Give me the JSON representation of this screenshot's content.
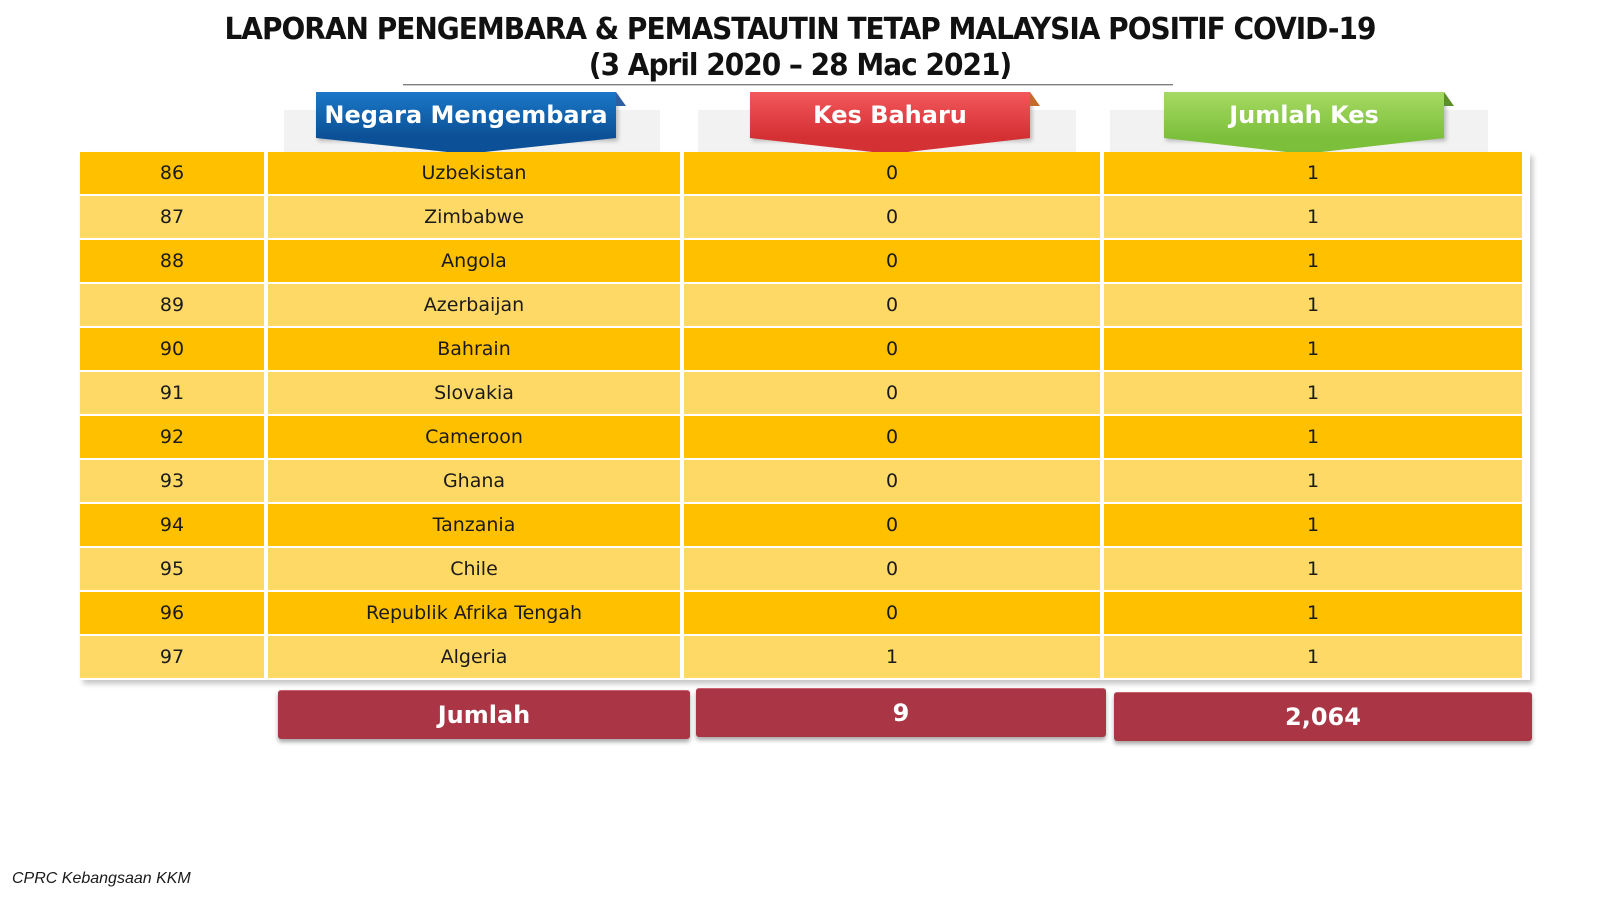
{
  "title": {
    "line1": "LAPORAN PENGEMBARA & PEMASTAUTIN TETAP MALAYSIA POSITIF COVID-19",
    "line2": "(3 April 2020 – 28 Mac 2021)"
  },
  "headers": {
    "country": "Negara Mengembara",
    "new_cases": "Kes Baharu",
    "total_cases": "Jumlah Kes"
  },
  "rows": [
    {
      "no": "86",
      "country": "Uzbekistan",
      "new": "0",
      "total": "1"
    },
    {
      "no": "87",
      "country": "Zimbabwe",
      "new": "0",
      "total": "1"
    },
    {
      "no": "88",
      "country": "Angola",
      "new": "0",
      "total": "1"
    },
    {
      "no": "89",
      "country": "Azerbaijan",
      "new": "0",
      "total": "1"
    },
    {
      "no": "90",
      "country": "Bahrain",
      "new": "0",
      "total": "1"
    },
    {
      "no": "91",
      "country": "Slovakia",
      "new": "0",
      "total": "1"
    },
    {
      "no": "92",
      "country": "Cameroon",
      "new": "0",
      "total": "1"
    },
    {
      "no": "93",
      "country": "Ghana",
      "new": "0",
      "total": "1"
    },
    {
      "no": "94",
      "country": "Tanzania",
      "new": "0",
      "total": "1"
    },
    {
      "no": "95",
      "country": "Chile",
      "new": "0",
      "total": "1"
    },
    {
      "no": "96",
      "country": "Republik Afrika Tengah",
      "new": "0",
      "total": "1"
    },
    {
      "no": "97",
      "country": "Algeria",
      "new": "1",
      "total": "1"
    }
  ],
  "totals": {
    "label": "Jumlah",
    "new": "9",
    "total": "2,064"
  },
  "footer": "CPRC Kebangsaan KKM",
  "colors": {
    "row_dark": "#ffc000",
    "row_light": "#ffd966",
    "total_box": "#a93545",
    "ribbon_blue": "#0b4f95",
    "ribbon_red": "#d42f33",
    "ribbon_green": "#7cbf3b"
  }
}
